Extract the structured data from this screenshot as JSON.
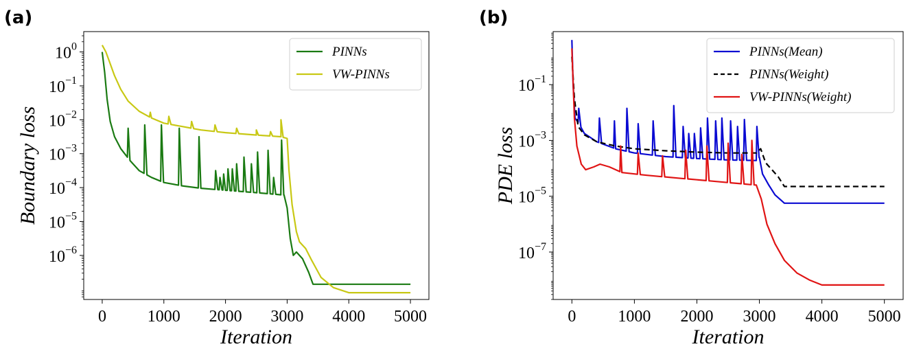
{
  "chart_data": [
    {
      "panel_label": "(a)",
      "type": "line",
      "xlabel": "Iteration",
      "ylabel": "Boundary loss",
      "yscale": "log",
      "xlim": [
        -300,
        5300
      ],
      "ylim_log10": [
        -7.3,
        0.6
      ],
      "x_ticks": [
        0,
        1000,
        2000,
        3000,
        4000,
        5000
      ],
      "y_ticks": [
        {
          "exp": 0,
          "label": "0"
        },
        {
          "exp": -1,
          "label": "−1"
        },
        {
          "exp": -2,
          "label": "−2"
        },
        {
          "exp": -3,
          "label": "−3"
        },
        {
          "exp": -4,
          "label": "−4"
        },
        {
          "exp": -5,
          "label": "−5"
        },
        {
          "exp": -6,
          "label": "−6"
        }
      ],
      "legend_position": "top-right",
      "series": [
        {
          "name": "PINNs",
          "color": "#1a7a12",
          "dash": "",
          "baseline": [
            [
              0,
              0.0
            ],
            [
              40,
              -0.6
            ],
            [
              80,
              -1.4
            ],
            [
              130,
              -2.05
            ],
            [
              200,
              -2.5
            ],
            [
              300,
              -2.85
            ],
            [
              450,
              -3.2
            ],
            [
              600,
              -3.5
            ],
            [
              800,
              -3.7
            ],
            [
              1000,
              -3.85
            ],
            [
              1300,
              -3.95
            ],
            [
              1600,
              -4.02
            ],
            [
              2000,
              -4.08
            ],
            [
              2500,
              -4.15
            ],
            [
              2950,
              -4.22
            ],
            [
              3000,
              -4.6
            ],
            [
              3050,
              -5.5
            ],
            [
              3100,
              -6.0
            ],
            [
              3150,
              -5.9
            ],
            [
              3250,
              -6.1
            ],
            [
              3350,
              -6.5
            ],
            [
              3420,
              -6.85
            ],
            [
              5000,
              -6.85
            ]
          ],
          "spikes": [
            {
              "x": 420,
              "peak": -2.25
            },
            {
              "x": 690,
              "peak": -2.15
            },
            {
              "x": 960,
              "peak": -2.15
            },
            {
              "x": 1250,
              "peak": -2.25
            },
            {
              "x": 1570,
              "peak": -2.5
            },
            {
              "x": 1840,
              "peak": -3.5
            },
            {
              "x": 1910,
              "peak": -3.7
            },
            {
              "x": 1970,
              "peak": -3.6
            },
            {
              "x": 2040,
              "peak": -3.45
            },
            {
              "x": 2110,
              "peak": -3.45
            },
            {
              "x": 2180,
              "peak": -3.3
            },
            {
              "x": 2300,
              "peak": -3.1
            },
            {
              "x": 2420,
              "peak": -3.3
            },
            {
              "x": 2520,
              "peak": -2.95
            },
            {
              "x": 2690,
              "peak": -2.9
            },
            {
              "x": 2780,
              "peak": -3.7
            },
            {
              "x": 2910,
              "peak": -2.6
            }
          ]
        },
        {
          "name": "VW-PINNs",
          "color": "#c8c814",
          "dash": "",
          "baseline": [
            [
              0,
              0.2
            ],
            [
              60,
              0.0
            ],
            [
              120,
              -0.3
            ],
            [
              200,
              -0.7
            ],
            [
              300,
              -1.1
            ],
            [
              420,
              -1.45
            ],
            [
              600,
              -1.75
            ],
            [
              800,
              -1.95
            ],
            [
              1000,
              -2.1
            ],
            [
              1300,
              -2.2
            ],
            [
              1600,
              -2.3
            ],
            [
              2000,
              -2.38
            ],
            [
              2500,
              -2.45
            ],
            [
              2900,
              -2.5
            ],
            [
              3000,
              -2.55
            ],
            [
              3030,
              -3.5
            ],
            [
              3080,
              -4.5
            ],
            [
              3150,
              -5.3
            ],
            [
              3200,
              -5.6
            ],
            [
              3300,
              -5.8
            ],
            [
              3400,
              -6.15
            ],
            [
              3550,
              -6.65
            ],
            [
              3750,
              -6.95
            ],
            [
              4000,
              -7.1
            ],
            [
              5000,
              -7.1
            ]
          ],
          "spikes": [
            {
              "x": 780,
              "peak": -1.78
            },
            {
              "x": 1080,
              "peak": -1.9
            },
            {
              "x": 1450,
              "peak": -2.05
            },
            {
              "x": 1830,
              "peak": -2.15
            },
            {
              "x": 2180,
              "peak": -2.25
            },
            {
              "x": 2500,
              "peak": -2.3
            },
            {
              "x": 2730,
              "peak": -2.35
            },
            {
              "x": 2900,
              "peak": -2.0
            }
          ]
        }
      ]
    },
    {
      "panel_label": "(b)",
      "type": "line",
      "xlabel": "Iteration",
      "ylabel": "PDE loss",
      "yscale": "log",
      "xlim": [
        -300,
        5300
      ],
      "ylim_log10": [
        -8.7,
        0.9
      ],
      "x_ticks": [
        0,
        1000,
        2000,
        3000,
        4000,
        5000
      ],
      "y_ticks": [
        {
          "exp": -1,
          "label": "−1"
        },
        {
          "exp": -3,
          "label": "−3"
        },
        {
          "exp": -5,
          "label": "−5"
        },
        {
          "exp": -7,
          "label": "−7"
        }
      ],
      "legend_position": "top-right",
      "series": [
        {
          "name": "PINNs(Mean)",
          "color": "#0a0ad2",
          "dash": "",
          "baseline": [
            [
              0,
              0.6
            ],
            [
              20,
              -1.0
            ],
            [
              50,
              -2.2
            ],
            [
              100,
              -2.35
            ],
            [
              200,
              -2.75
            ],
            [
              400,
              -3.05
            ],
            [
              700,
              -3.3
            ],
            [
              1000,
              -3.45
            ],
            [
              1500,
              -3.58
            ],
            [
              2000,
              -3.65
            ],
            [
              2500,
              -3.7
            ],
            [
              2950,
              -3.72
            ],
            [
              3000,
              -3.6
            ],
            [
              3050,
              -4.2
            ],
            [
              3150,
              -4.6
            ],
            [
              3250,
              -4.95
            ],
            [
              3400,
              -5.25
            ],
            [
              5000,
              -5.25
            ]
          ],
          "spikes": [
            {
              "x": 110,
              "peak": -1.85
            },
            {
              "x": 440,
              "peak": -2.2
            },
            {
              "x": 680,
              "peak": -2.3
            },
            {
              "x": 880,
              "peak": -1.85
            },
            {
              "x": 1060,
              "peak": -2.4
            },
            {
              "x": 1300,
              "peak": -2.3
            },
            {
              "x": 1630,
              "peak": -1.75
            },
            {
              "x": 1780,
              "peak": -2.5
            },
            {
              "x": 1870,
              "peak": -2.75
            },
            {
              "x": 1960,
              "peak": -2.75
            },
            {
              "x": 2060,
              "peak": -2.55
            },
            {
              "x": 2170,
              "peak": -2.2
            },
            {
              "x": 2300,
              "peak": -2.3
            },
            {
              "x": 2400,
              "peak": -2.2
            },
            {
              "x": 2540,
              "peak": -2.3
            },
            {
              "x": 2650,
              "peak": -2.5
            },
            {
              "x": 2760,
              "peak": -2.25
            },
            {
              "x": 2960,
              "peak": -2.5
            }
          ]
        },
        {
          "name": "PINNs(Weight)",
          "color": "#000000",
          "dash": "8,5",
          "baseline": [
            [
              0,
              0.0
            ],
            [
              40,
              -1.5
            ],
            [
              100,
              -2.5
            ],
            [
              200,
              -2.8
            ],
            [
              400,
              -3.05
            ],
            [
              700,
              -3.2
            ],
            [
              1000,
              -3.3
            ],
            [
              1500,
              -3.37
            ],
            [
              2000,
              -3.42
            ],
            [
              2500,
              -3.45
            ],
            [
              2950,
              -3.45
            ],
            [
              3020,
              -3.3
            ],
            [
              3100,
              -3.8
            ],
            [
              3200,
              -4.05
            ],
            [
              3300,
              -4.3
            ],
            [
              3400,
              -4.65
            ],
            [
              5000,
              -4.65
            ]
          ],
          "spikes": []
        },
        {
          "name": "VW-PINNs(Weight)",
          "color": "#e01414",
          "dash": "",
          "baseline": [
            [
              0,
              0.3
            ],
            [
              40,
              -2.2
            ],
            [
              80,
              -3.2
            ],
            [
              150,
              -3.85
            ],
            [
              220,
              -4.05
            ],
            [
              350,
              -3.95
            ],
            [
              450,
              -3.85
            ],
            [
              600,
              -3.95
            ],
            [
              800,
              -4.15
            ],
            [
              1200,
              -4.25
            ],
            [
              1700,
              -4.35
            ],
            [
              2200,
              -4.45
            ],
            [
              2700,
              -4.55
            ],
            [
              2950,
              -4.6
            ],
            [
              3030,
              -5.1
            ],
            [
              3120,
              -6.0
            ],
            [
              3250,
              -6.7
            ],
            [
              3400,
              -7.3
            ],
            [
              3600,
              -7.75
            ],
            [
              3800,
              -8.0
            ],
            [
              4000,
              -8.18
            ],
            [
              5000,
              -8.18
            ]
          ],
          "spikes": [
            {
              "x": 780,
              "peak": -3.2
            },
            {
              "x": 1060,
              "peak": -3.45
            },
            {
              "x": 1450,
              "peak": -3.55
            },
            {
              "x": 1820,
              "peak": -3.35
            },
            {
              "x": 2160,
              "peak": -3.2
            },
            {
              "x": 2500,
              "peak": -3.1
            },
            {
              "x": 2720,
              "peak": -3.5
            },
            {
              "x": 2880,
              "peak": -3.0
            }
          ]
        }
      ]
    }
  ]
}
